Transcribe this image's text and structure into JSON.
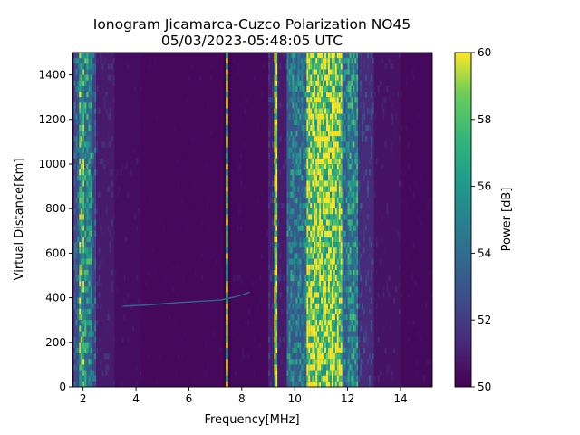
{
  "chart_data": {
    "type": "heatmap",
    "title": "Ionogram Jicamarca-Cuzco Polarization NO45",
    "subtitle": "05/03/2023-05:48:05 UTC",
    "xlabel": "Frequency[MHz]",
    "ylabel": "Virtual Distance[Km]",
    "xlim": [
      1.6,
      15.2
    ],
    "ylim": [
      0,
      1500
    ],
    "xticks": [
      2,
      4,
      6,
      8,
      10,
      12,
      14
    ],
    "yticks": [
      0,
      200,
      400,
      600,
      800,
      1000,
      1200,
      1400
    ],
    "grid": false,
    "colorbar": {
      "label": "Power [dB]",
      "range": [
        50,
        60
      ],
      "ticks": [
        50,
        52,
        54,
        56,
        58,
        60
      ],
      "colormap": "viridis"
    },
    "bands": [
      {
        "freq": [
          1.65,
          1.85
        ],
        "level": 0.45
      },
      {
        "freq": [
          1.85,
          2.05
        ],
        "level": 0.8
      },
      {
        "freq": [
          2.05,
          2.35
        ],
        "level": 0.65
      },
      {
        "freq": [
          2.35,
          2.5
        ],
        "level": 0.4
      },
      {
        "freq": [
          2.5,
          3.2
        ],
        "level": 0.15
      },
      {
        "freq": [
          3.2,
          4.2
        ],
        "level": 0.07
      },
      {
        "freq": [
          4.2,
          7.3
        ],
        "level": 0.04
      },
      {
        "freq": [
          7.4,
          7.48
        ],
        "level": 0.95
      },
      {
        "freq": [
          7.6,
          9.0
        ],
        "level": 0.05
      },
      {
        "freq": [
          9.0,
          9.2
        ],
        "level": 0.2
      },
      {
        "freq": [
          9.22,
          9.35
        ],
        "level": 0.95
      },
      {
        "freq": [
          9.35,
          9.7
        ],
        "level": 0.15
      },
      {
        "freq": [
          9.7,
          10.45
        ],
        "level": 0.55
      },
      {
        "freq": [
          10.45,
          11.8
        ],
        "level": 0.95
      },
      {
        "freq": [
          11.8,
          12.0
        ],
        "level": 0.55
      },
      {
        "freq": [
          12.0,
          12.4
        ],
        "level": 0.65
      },
      {
        "freq": [
          12.4,
          13.0
        ],
        "level": 0.25
      },
      {
        "freq": [
          13.0,
          14.0
        ],
        "level": 0.1
      },
      {
        "freq": [
          14.0,
          15.2
        ],
        "level": 0.05
      }
    ],
    "trace": [
      {
        "freq": 3.5,
        "distance": 362
      },
      {
        "freq": 4.5,
        "distance": 368
      },
      {
        "freq": 5.5,
        "distance": 378
      },
      {
        "freq": 6.5,
        "distance": 385
      },
      {
        "freq": 7.2,
        "distance": 390
      },
      {
        "freq": 7.8,
        "distance": 405
      },
      {
        "freq": 8.3,
        "distance": 425
      }
    ],
    "colors": {
      "low": "#440154",
      "high": "#fde725"
    }
  }
}
